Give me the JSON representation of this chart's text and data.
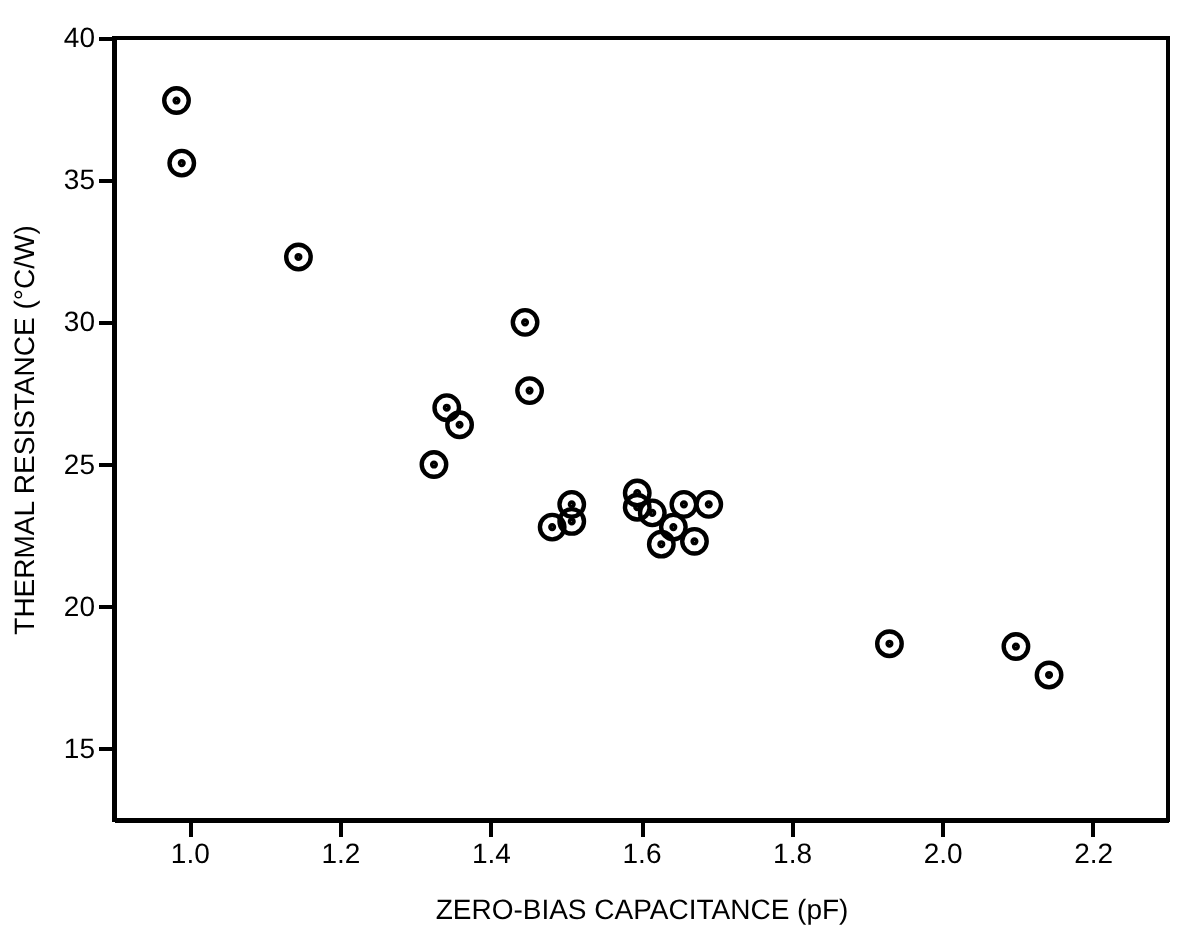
{
  "chart_data": {
    "type": "scatter",
    "xlabel": "ZERO-BIAS CAPACITANCE (pF)",
    "ylabel": "THERMAL RESISTANCE (°C/W)",
    "x": [
      0.983,
      0.99,
      1.145,
      1.325,
      1.342,
      1.359,
      1.446,
      1.452,
      1.482,
      1.508,
      1.508,
      1.595,
      1.595,
      1.615,
      1.643,
      1.627,
      1.657,
      1.671,
      1.69,
      1.93,
      2.098,
      2.142
    ],
    "series": [
      {
        "color": "#000000",
        "values": [
          37.8,
          35.6,
          32.3,
          25.0,
          27.0,
          26.4,
          30.0,
          27.6,
          22.8,
          23.0,
          23.6,
          24.0,
          23.5,
          23.3,
          22.8,
          22.2,
          23.6,
          22.3,
          23.6,
          18.7,
          18.6,
          17.6
        ]
      }
    ],
    "xlim": [
      0.9,
      2.3
    ],
    "ylim": [
      12.5,
      40
    ],
    "xticks": [
      {
        "value": 1.0,
        "label": "1.0"
      },
      {
        "value": 1.2,
        "label": "1.2"
      },
      {
        "value": 1.4,
        "label": "1.4"
      },
      {
        "value": 1.6,
        "label": "1.6"
      },
      {
        "value": 1.8,
        "label": "1.8"
      },
      {
        "value": 2.0,
        "label": "2.0"
      },
      {
        "value": 2.2,
        "label": "2.2"
      }
    ],
    "yticks": [
      15,
      20,
      25,
      30,
      35,
      40
    ],
    "grid": false,
    "marker": "circle"
  }
}
